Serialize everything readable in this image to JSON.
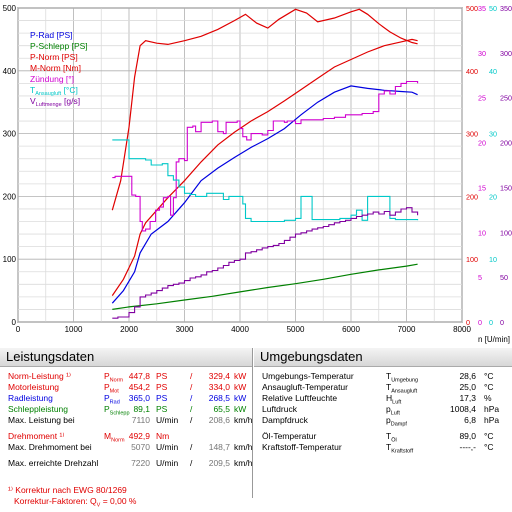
{
  "chart_data": {
    "type": "line",
    "xlabel": "n [U/min]",
    "x_ticks": [
      0,
      1000,
      2000,
      3000,
      4000,
      5000,
      6000,
      7000,
      8000
    ],
    "xlim": [
      0,
      8000
    ],
    "left_axis": {
      "ticks": [
        0,
        100,
        200,
        300,
        400,
        500
      ],
      "ylim": [
        0,
        500
      ]
    },
    "right_axes": [
      {
        "color": "#e00000",
        "ticks": [
          0,
          100,
          200,
          300,
          400,
          500
        ]
      },
      {
        "color": "#d000d0",
        "ticks": [
          0,
          5,
          10,
          15,
          20,
          25,
          30,
          35
        ]
      },
      {
        "color": "#00c8c8",
        "ticks": [
          0,
          10,
          20,
          30,
          40,
          50
        ]
      },
      {
        "color": "#8000a0",
        "ticks": [
          0,
          50,
          100,
          150,
          200,
          250,
          300,
          350
        ]
      }
    ],
    "legend": [
      {
        "label": "P-Rad [PS]",
        "color": "#0000e0"
      },
      {
        "label": "P-Schlepp [PS]",
        "color": "#008000"
      },
      {
        "label": "P-Norm [PS]",
        "color": "#e00000"
      },
      {
        "label": "M-Norm [Nm]",
        "color": "#e00000"
      },
      {
        "label": "Zündung [°]",
        "color": "#d000d0"
      },
      {
        "label": "T",
        "sub": "Ansaugluft",
        "suffix": " [°C]",
        "color": "#00c8c8"
      },
      {
        "label": "V",
        "sub": "Luftmenge",
        "suffix": " [g/s]",
        "color": "#8000a0"
      }
    ],
    "grid": true,
    "series": [
      {
        "name": "P-Rad [PS]",
        "color": "#0000e0",
        "points": [
          [
            1700,
            30
          ],
          [
            1900,
            50
          ],
          [
            2100,
            80
          ],
          [
            2200,
            110
          ],
          [
            2400,
            140
          ],
          [
            2700,
            160
          ],
          [
            3000,
            190
          ],
          [
            3300,
            225
          ],
          [
            3600,
            245
          ],
          [
            3900,
            262
          ],
          [
            4200,
            278
          ],
          [
            4500,
            292
          ],
          [
            4800,
            308
          ],
          [
            5100,
            330
          ],
          [
            5400,
            350
          ],
          [
            5700,
            366
          ],
          [
            6000,
            376
          ],
          [
            6300,
            372
          ],
          [
            6600,
            369
          ],
          [
            6900,
            367
          ],
          [
            7100,
            366
          ],
          [
            7200,
            362
          ]
        ]
      },
      {
        "name": "P-Schlepp [PS]",
        "color": "#008000",
        "points": [
          [
            1700,
            20
          ],
          [
            2000,
            24
          ],
          [
            2500,
            29
          ],
          [
            3000,
            35
          ],
          [
            3500,
            41
          ],
          [
            4000,
            48
          ],
          [
            4500,
            55
          ],
          [
            5000,
            61
          ],
          [
            5500,
            68
          ],
          [
            6000,
            76
          ],
          [
            6500,
            83
          ],
          [
            7000,
            89
          ],
          [
            7200,
            92
          ]
        ]
      },
      {
        "name": "P-Norm [PS]",
        "color": "#e00000",
        "points": [
          [
            1700,
            42
          ],
          [
            1900,
            68
          ],
          [
            2100,
            105
          ],
          [
            2200,
            140
          ],
          [
            2300,
            158
          ],
          [
            2500,
            178
          ],
          [
            2700,
            198
          ],
          [
            3000,
            225
          ],
          [
            3300,
            255
          ],
          [
            3600,
            282
          ],
          [
            3900,
            302
          ],
          [
            4200,
            320
          ],
          [
            4500,
            335
          ],
          [
            4800,
            352
          ],
          [
            5100,
            370
          ],
          [
            5400,
            388
          ],
          [
            5700,
            406
          ],
          [
            6000,
            418
          ],
          [
            6300,
            430
          ],
          [
            6600,
            440
          ],
          [
            6900,
            446
          ],
          [
            7100,
            450
          ],
          [
            7200,
            448
          ]
        ]
      },
      {
        "name": "M-Norm [Nm]",
        "color": "#e00000",
        "points": [
          [
            1700,
            178
          ],
          [
            1850,
            225
          ],
          [
            2000,
            310
          ],
          [
            2100,
            390
          ],
          [
            2200,
            440
          ],
          [
            2300,
            448
          ],
          [
            2500,
            444
          ],
          [
            2700,
            442
          ],
          [
            3000,
            448
          ],
          [
            3300,
            455
          ],
          [
            3600,
            466
          ],
          [
            3900,
            480
          ],
          [
            4100,
            490
          ],
          [
            4300,
            476
          ],
          [
            4500,
            468
          ],
          [
            4700,
            482
          ],
          [
            5000,
            498
          ],
          [
            5200,
            492
          ],
          [
            5400,
            478
          ],
          [
            5700,
            484
          ],
          [
            6000,
            494
          ],
          [
            6150,
            498
          ],
          [
            6300,
            490
          ],
          [
            6500,
            475
          ],
          [
            6700,
            462
          ],
          [
            6900,
            452
          ],
          [
            7100,
            445
          ],
          [
            7200,
            443
          ]
        ]
      },
      {
        "name": "Zündung [°]",
        "color": "#d000d0",
        "points": [
          [
            1700,
            230
          ],
          [
            1750,
            232
          ],
          [
            2000,
            232
          ],
          [
            2050,
            202
          ],
          [
            2120,
            200
          ],
          [
            2170,
            200
          ],
          [
            2200,
            160
          ],
          [
            2240,
            145
          ],
          [
            2300,
            148
          ],
          [
            2380,
            160
          ],
          [
            2480,
            178
          ],
          [
            2550,
            183
          ],
          [
            2620,
            198
          ],
          [
            2700,
            200
          ],
          [
            2750,
            170
          ],
          [
            2800,
            198
          ],
          [
            2850,
            255
          ],
          [
            2900,
            260
          ],
          [
            3000,
            257
          ],
          [
            3050,
            310
          ],
          [
            3150,
            312
          ],
          [
            3200,
            303
          ],
          [
            3300,
            318
          ],
          [
            3450,
            318
          ],
          [
            3500,
            320
          ],
          [
            3600,
            303
          ],
          [
            3700,
            300
          ],
          [
            3750,
            318
          ],
          [
            3900,
            318
          ],
          [
            3950,
            320
          ],
          [
            4000,
            308
          ],
          [
            4050,
            295
          ],
          [
            4120,
            290
          ],
          [
            4200,
            300
          ],
          [
            4300,
            300
          ],
          [
            4400,
            298
          ],
          [
            4500,
            305
          ],
          [
            4600,
            320
          ],
          [
            4800,
            318
          ],
          [
            4850,
            320
          ],
          [
            5000,
            316
          ],
          [
            5100,
            322
          ],
          [
            5300,
            322
          ],
          [
            5500,
            324
          ],
          [
            5700,
            326
          ],
          [
            5900,
            330
          ],
          [
            6100,
            330
          ],
          [
            6200,
            332
          ],
          [
            6400,
            335
          ],
          [
            6500,
            363
          ],
          [
            6600,
            368
          ],
          [
            6700,
            363
          ],
          [
            6800,
            375
          ],
          [
            6900,
            380
          ],
          [
            7000,
            383
          ],
          [
            7200,
            380
          ]
        ]
      },
      {
        "name": "T",
        "color": "#00c8c8",
        "points": [
          [
            1700,
            290
          ],
          [
            1800,
            290
          ],
          [
            1900,
            290
          ],
          [
            2000,
            260
          ],
          [
            2100,
            260
          ],
          [
            2300,
            258
          ],
          [
            2400,
            250
          ],
          [
            2500,
            250
          ],
          [
            2600,
            252
          ],
          [
            2700,
            233
          ],
          [
            2800,
            226
          ],
          [
            2900,
            215
          ],
          [
            3000,
            205
          ],
          [
            3100,
            203
          ],
          [
            3200,
            200
          ],
          [
            3300,
            200
          ],
          [
            3400,
            205
          ],
          [
            3600,
            205
          ],
          [
            3700,
            195
          ],
          [
            3800,
            200
          ],
          [
            4000,
            200
          ],
          [
            4050,
            188
          ],
          [
            4100,
            165
          ],
          [
            4200,
            160
          ],
          [
            4500,
            160
          ],
          [
            4800,
            162
          ],
          [
            5000,
            165
          ],
          [
            5100,
            200
          ],
          [
            5200,
            200
          ],
          [
            5300,
            163
          ],
          [
            5800,
            165
          ],
          [
            6000,
            170
          ],
          [
            6100,
            178
          ],
          [
            6200,
            162
          ],
          [
            6300,
            200
          ],
          [
            6400,
            200
          ],
          [
            6600,
            200
          ],
          [
            6700,
            165
          ],
          [
            6800,
            163
          ],
          [
            7000,
            163
          ],
          [
            7200,
            162
          ]
        ]
      },
      {
        "name": "V",
        "color": "#8000a0",
        "points": [
          [
            1700,
            6
          ],
          [
            1800,
            8
          ],
          [
            2000,
            15
          ],
          [
            2100,
            24
          ],
          [
            2200,
            40
          ],
          [
            2300,
            43
          ],
          [
            2400,
            46
          ],
          [
            2500,
            50
          ],
          [
            2600,
            54
          ],
          [
            2700,
            58
          ],
          [
            2800,
            60
          ],
          [
            2900,
            62
          ],
          [
            3000,
            66
          ],
          [
            3100,
            70
          ],
          [
            3200,
            72
          ],
          [
            3300,
            75
          ],
          [
            3400,
            80
          ],
          [
            3500,
            82
          ],
          [
            3600,
            86
          ],
          [
            3700,
            90
          ],
          [
            3800,
            95
          ],
          [
            3900,
            98
          ],
          [
            4000,
            100
          ],
          [
            4100,
            110
          ],
          [
            4200,
            112
          ],
          [
            4300,
            115
          ],
          [
            4400,
            118
          ],
          [
            4500,
            120
          ],
          [
            4600,
            122
          ],
          [
            4700,
            125
          ],
          [
            4800,
            130
          ],
          [
            4900,
            135
          ],
          [
            5000,
            140
          ],
          [
            5100,
            142
          ],
          [
            5200,
            145
          ],
          [
            5300,
            148
          ],
          [
            5400,
            150
          ],
          [
            5500,
            152
          ],
          [
            5600,
            155
          ],
          [
            5700,
            158
          ],
          [
            5800,
            160
          ],
          [
            5900,
            162
          ],
          [
            6000,
            165
          ],
          [
            6100,
            168
          ],
          [
            6200,
            170
          ],
          [
            6300,
            172
          ],
          [
            6400,
            175
          ],
          [
            6500,
            172
          ],
          [
            6600,
            176
          ],
          [
            6700,
            170
          ],
          [
            6800,
            175
          ],
          [
            6900,
            180
          ],
          [
            7000,
            182
          ],
          [
            7100,
            175
          ],
          [
            7200,
            170
          ]
        ]
      }
    ]
  },
  "left_panel": {
    "title": "Leistungsdaten",
    "rows": [
      {
        "label": "Norm-Leistung ¹⁾",
        "sym": "P",
        "sub": "Norm",
        "v1": "447,8",
        "u1": "PS",
        "sep": "/",
        "v2": "329,4",
        "u2": "kW",
        "color": "red"
      },
      {
        "label": "Motorleistung",
        "sym": "P",
        "sub": "Mot",
        "v1": "454,2",
        "u1": "PS",
        "sep": "/",
        "v2": "334,0",
        "u2": "kW",
        "color": "red"
      },
      {
        "label": "Radleistung",
        "sym": "P",
        "sub": "Rad",
        "v1": "365,0",
        "u1": "PS",
        "sep": "/",
        "v2": "268,5",
        "u2": "kW",
        "color": "blue"
      },
      {
        "label": "Schleppleistung",
        "sym": "P",
        "sub": "Schlepp",
        "v1": "89,1",
        "u1": "PS",
        "sep": "/",
        "v2": "65,5",
        "u2": "kW",
        "color": "green"
      },
      {
        "label": "Max. Leistung bei",
        "sym": "",
        "sub": "",
        "v1": "7110",
        "u1": "U/min",
        "sep": "/",
        "v2": "208,6",
        "u2": "km/h",
        "color": "black"
      },
      {
        "label": "Drehmoment ¹⁾",
        "sym": "M",
        "sub": "Norm",
        "v1": "492,9",
        "u1": "Nm",
        "sep": "",
        "v2": "",
        "u2": "",
        "color": "red"
      },
      {
        "label": "Max. Drehmoment bei",
        "sym": "",
        "sub": "",
        "v1": "5070",
        "u1": "U/min",
        "sep": "/",
        "v2": "148,7",
        "u2": "km/h",
        "color": "black"
      },
      {
        "label": "Max. erreichte Drehzahl",
        "sym": "",
        "sub": "",
        "v1": "7220",
        "u1": "U/min",
        "sep": "/",
        "v2": "209,5",
        "u2": "km/h",
        "color": "black"
      }
    ],
    "footnote1": "¹⁾ Korrektur nach EWG 80/1269",
    "footnote2_label": "Korrektur-Faktoren: Q",
    "footnote2_sub": "V",
    "footnote2_value": "=   0,00 %"
  },
  "right_panel": {
    "title": "Umgebungsdaten",
    "rows": [
      {
        "label": "Umgebungs-Temperatur",
        "sym": "T",
        "sub": "Umgebung",
        "value": "28,6",
        "unit": "°C"
      },
      {
        "label": "Ansaugluft-Temperatur",
        "sym": "T",
        "sub": "Ansaugluft",
        "value": "25,0",
        "unit": "°C"
      },
      {
        "label": "Relative Luftfeuchte",
        "sym": "H",
        "sub": "Luft",
        "value": "17,3",
        "unit": "%"
      },
      {
        "label": "Luftdruck",
        "sym": "p",
        "sub": "Luft",
        "value": "1008,4",
        "unit": "hPa"
      },
      {
        "label": "Dampfdruck",
        "sym": "p",
        "sub": "Dampf",
        "value": "6,8",
        "unit": "hPa"
      },
      {
        "label": "Öl-Temperatur",
        "sym": "T",
        "sub": "Öl",
        "value": "89,0",
        "unit": "°C"
      },
      {
        "label": "Kraftstoff-Temperatur",
        "sym": "T",
        "sub": "Kraftstoff",
        "value": "----,-",
        "unit": "°C"
      }
    ]
  }
}
